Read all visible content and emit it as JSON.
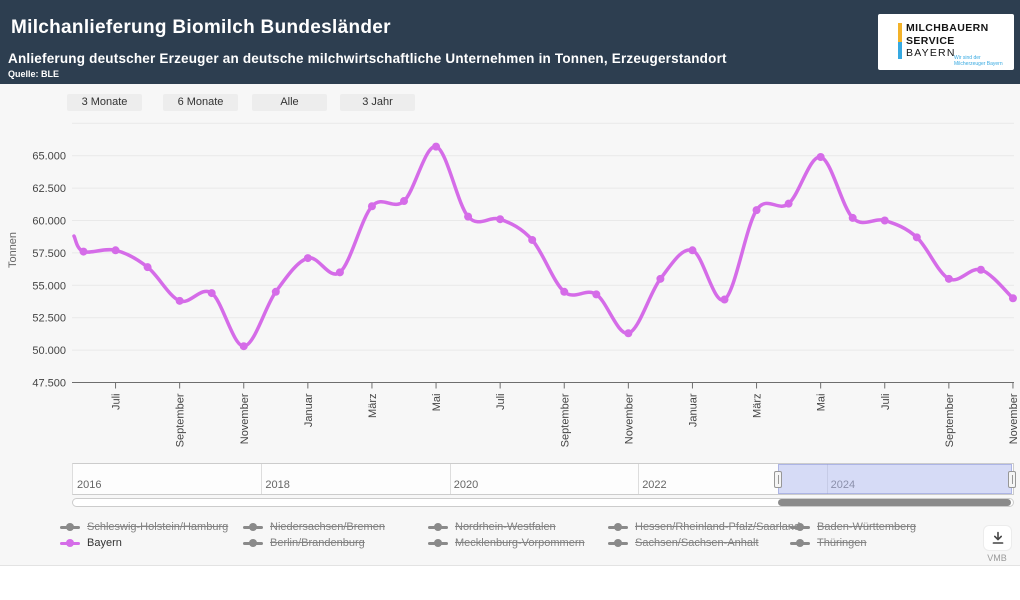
{
  "header": {
    "title": "Milchanlieferung Biomilch Bundesländer",
    "subtitle": "Anlieferung deutscher Erzeuger an deutsche milchwirtschaftliche Unternehmen in Tonnen, Erzeugerstandort",
    "source": "Quelle: BLE",
    "logo": {
      "line1": "MILCHBAUERN",
      "line2": "SERVICE",
      "line3": "BAYERN",
      "tagline1": "Wir sind der",
      "tagline2": "Milcherzeuger Bayern"
    }
  },
  "toolbar": {
    "buttons": [
      "3 Monate",
      "6 Monate",
      "Alle",
      "3 Jahr"
    ]
  },
  "chart_data": {
    "type": "line",
    "title": "",
    "xlabel": "",
    "ylabel": "Tonnen",
    "grid": true,
    "legend_position": "bottom",
    "ylim": [
      47500,
      67500
    ],
    "y_ticks": [
      65000,
      62500,
      60000,
      57500,
      55000,
      52500,
      50000,
      47500
    ],
    "y_tick_labels": [
      "65.000",
      "62.500",
      "60.000",
      "57.500",
      "55.000",
      "52.500",
      "50.000",
      "47.500"
    ],
    "y_gridlines": [
      67500,
      65000,
      62500,
      60000,
      57500,
      55000,
      52500,
      50000
    ],
    "months": [
      "Juni 2022",
      "Juli 2022",
      "August 2022",
      "September 2022",
      "Oktober 2022",
      "November 2022",
      "Dezember 2022",
      "Januar 2023",
      "Februar 2023",
      "März 2023",
      "April 2023",
      "Mai 2023",
      "Juni 2023",
      "Juli 2023",
      "August 2023",
      "September 2023",
      "Oktober 2023",
      "November 2023",
      "Dezember 2023",
      "Januar 2024",
      "Februar 2024",
      "März 2024",
      "April 2024",
      "Mai 2024",
      "Juni 2024",
      "Juli 2024",
      "August 2024",
      "September 2024",
      "Oktober 2024",
      "November 2024"
    ],
    "tick_start_index": 1,
    "tick_every": 2,
    "x_tick_labels": [
      "Juli",
      "September",
      "November",
      "Januar",
      "März",
      "Mai",
      "Juli",
      "September",
      "November",
      "Januar",
      "März",
      "Mai",
      "Juli",
      "September",
      "November"
    ],
    "series": [
      {
        "name": "Bayern",
        "color": "#d56ce8",
        "values": [
          57600,
          57700,
          56400,
          53800,
          54400,
          50300,
          54500,
          57100,
          56000,
          61100,
          61500,
          65700,
          60300,
          60100,
          58500,
          54500,
          54300,
          51300,
          55500,
          57700,
          53900,
          60800,
          61300,
          64900,
          60200,
          60000,
          58700,
          55500,
          56200,
          54000
        ]
      }
    ],
    "edge_lead_in_value": 58800
  },
  "navigator": {
    "years": [
      "2016",
      "2018",
      "2020",
      "2022",
      "2024"
    ]
  },
  "legend": {
    "disabled_color": "#8a8a8a",
    "items": [
      {
        "label": "Schleswig-Holstein/Hamburg",
        "enabled": false
      },
      {
        "label": "Niedersachsen/Bremen",
        "enabled": false
      },
      {
        "label": "Nordrhein-Westfalen",
        "enabled": false
      },
      {
        "label": "Hessen/Rheinland-Pfalz/Saarland",
        "enabled": false
      },
      {
        "label": "Baden-Württemberg",
        "enabled": false
      },
      {
        "label": "Bayern",
        "enabled": true,
        "color": "#d56ce8"
      },
      {
        "label": "Berlin/Brandenburg",
        "enabled": false
      },
      {
        "label": "Mecklenburg-Vorpommern",
        "enabled": false
      },
      {
        "label": "Sachsen/Sachsen-Anhalt",
        "enabled": false
      },
      {
        "label": "Thüringen",
        "enabled": false
      }
    ]
  },
  "download": {
    "caption": "VMB"
  }
}
